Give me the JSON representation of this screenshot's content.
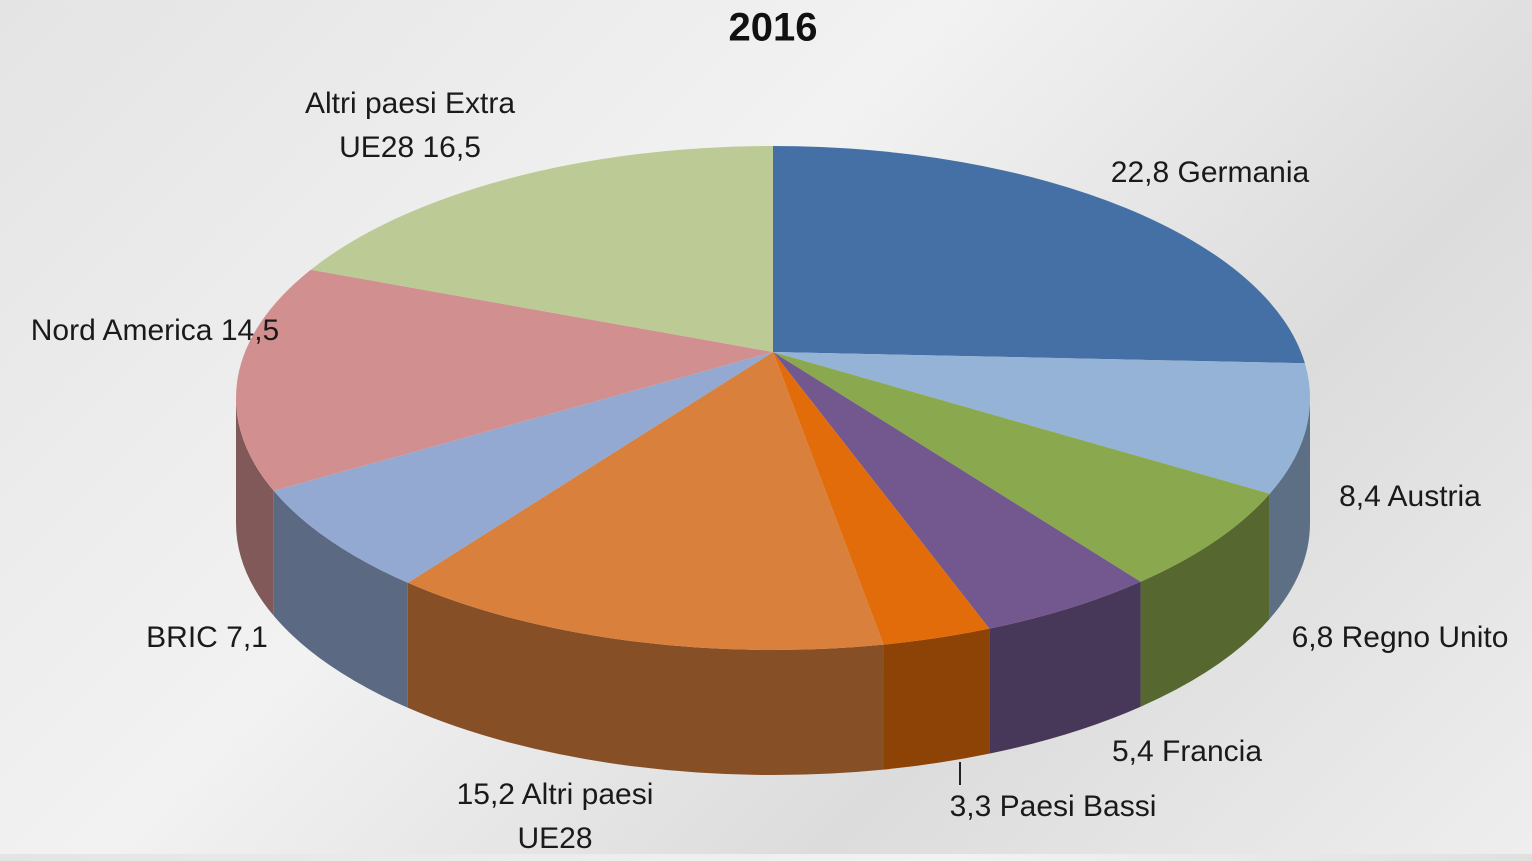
{
  "chart_data": {
    "type": "pie3d",
    "title": "2016",
    "values": [
      22.8,
      8.4,
      6.8,
      5.4,
      3.3,
      15.2,
      7.1,
      14.5,
      16.5
    ],
    "value_labels": [
      "22,8 Germania",
      "8,4 Austria",
      "6,8 Regno Unito",
      "5,4 Francia",
      "3,3 Paesi Bassi",
      "15,2 Altri paesi UE28",
      "BRIC 7,1",
      "Nord America 14,5",
      "Altri paesi Extra UE28 16,5"
    ],
    "colors": [
      "#4470a5",
      "#95b3d7",
      "#8aa84d",
      "#72588e",
      "#e36c0a",
      "#d9803d",
      "#93a9d1",
      "#d28f8f",
      "#bccb95"
    ]
  }
}
